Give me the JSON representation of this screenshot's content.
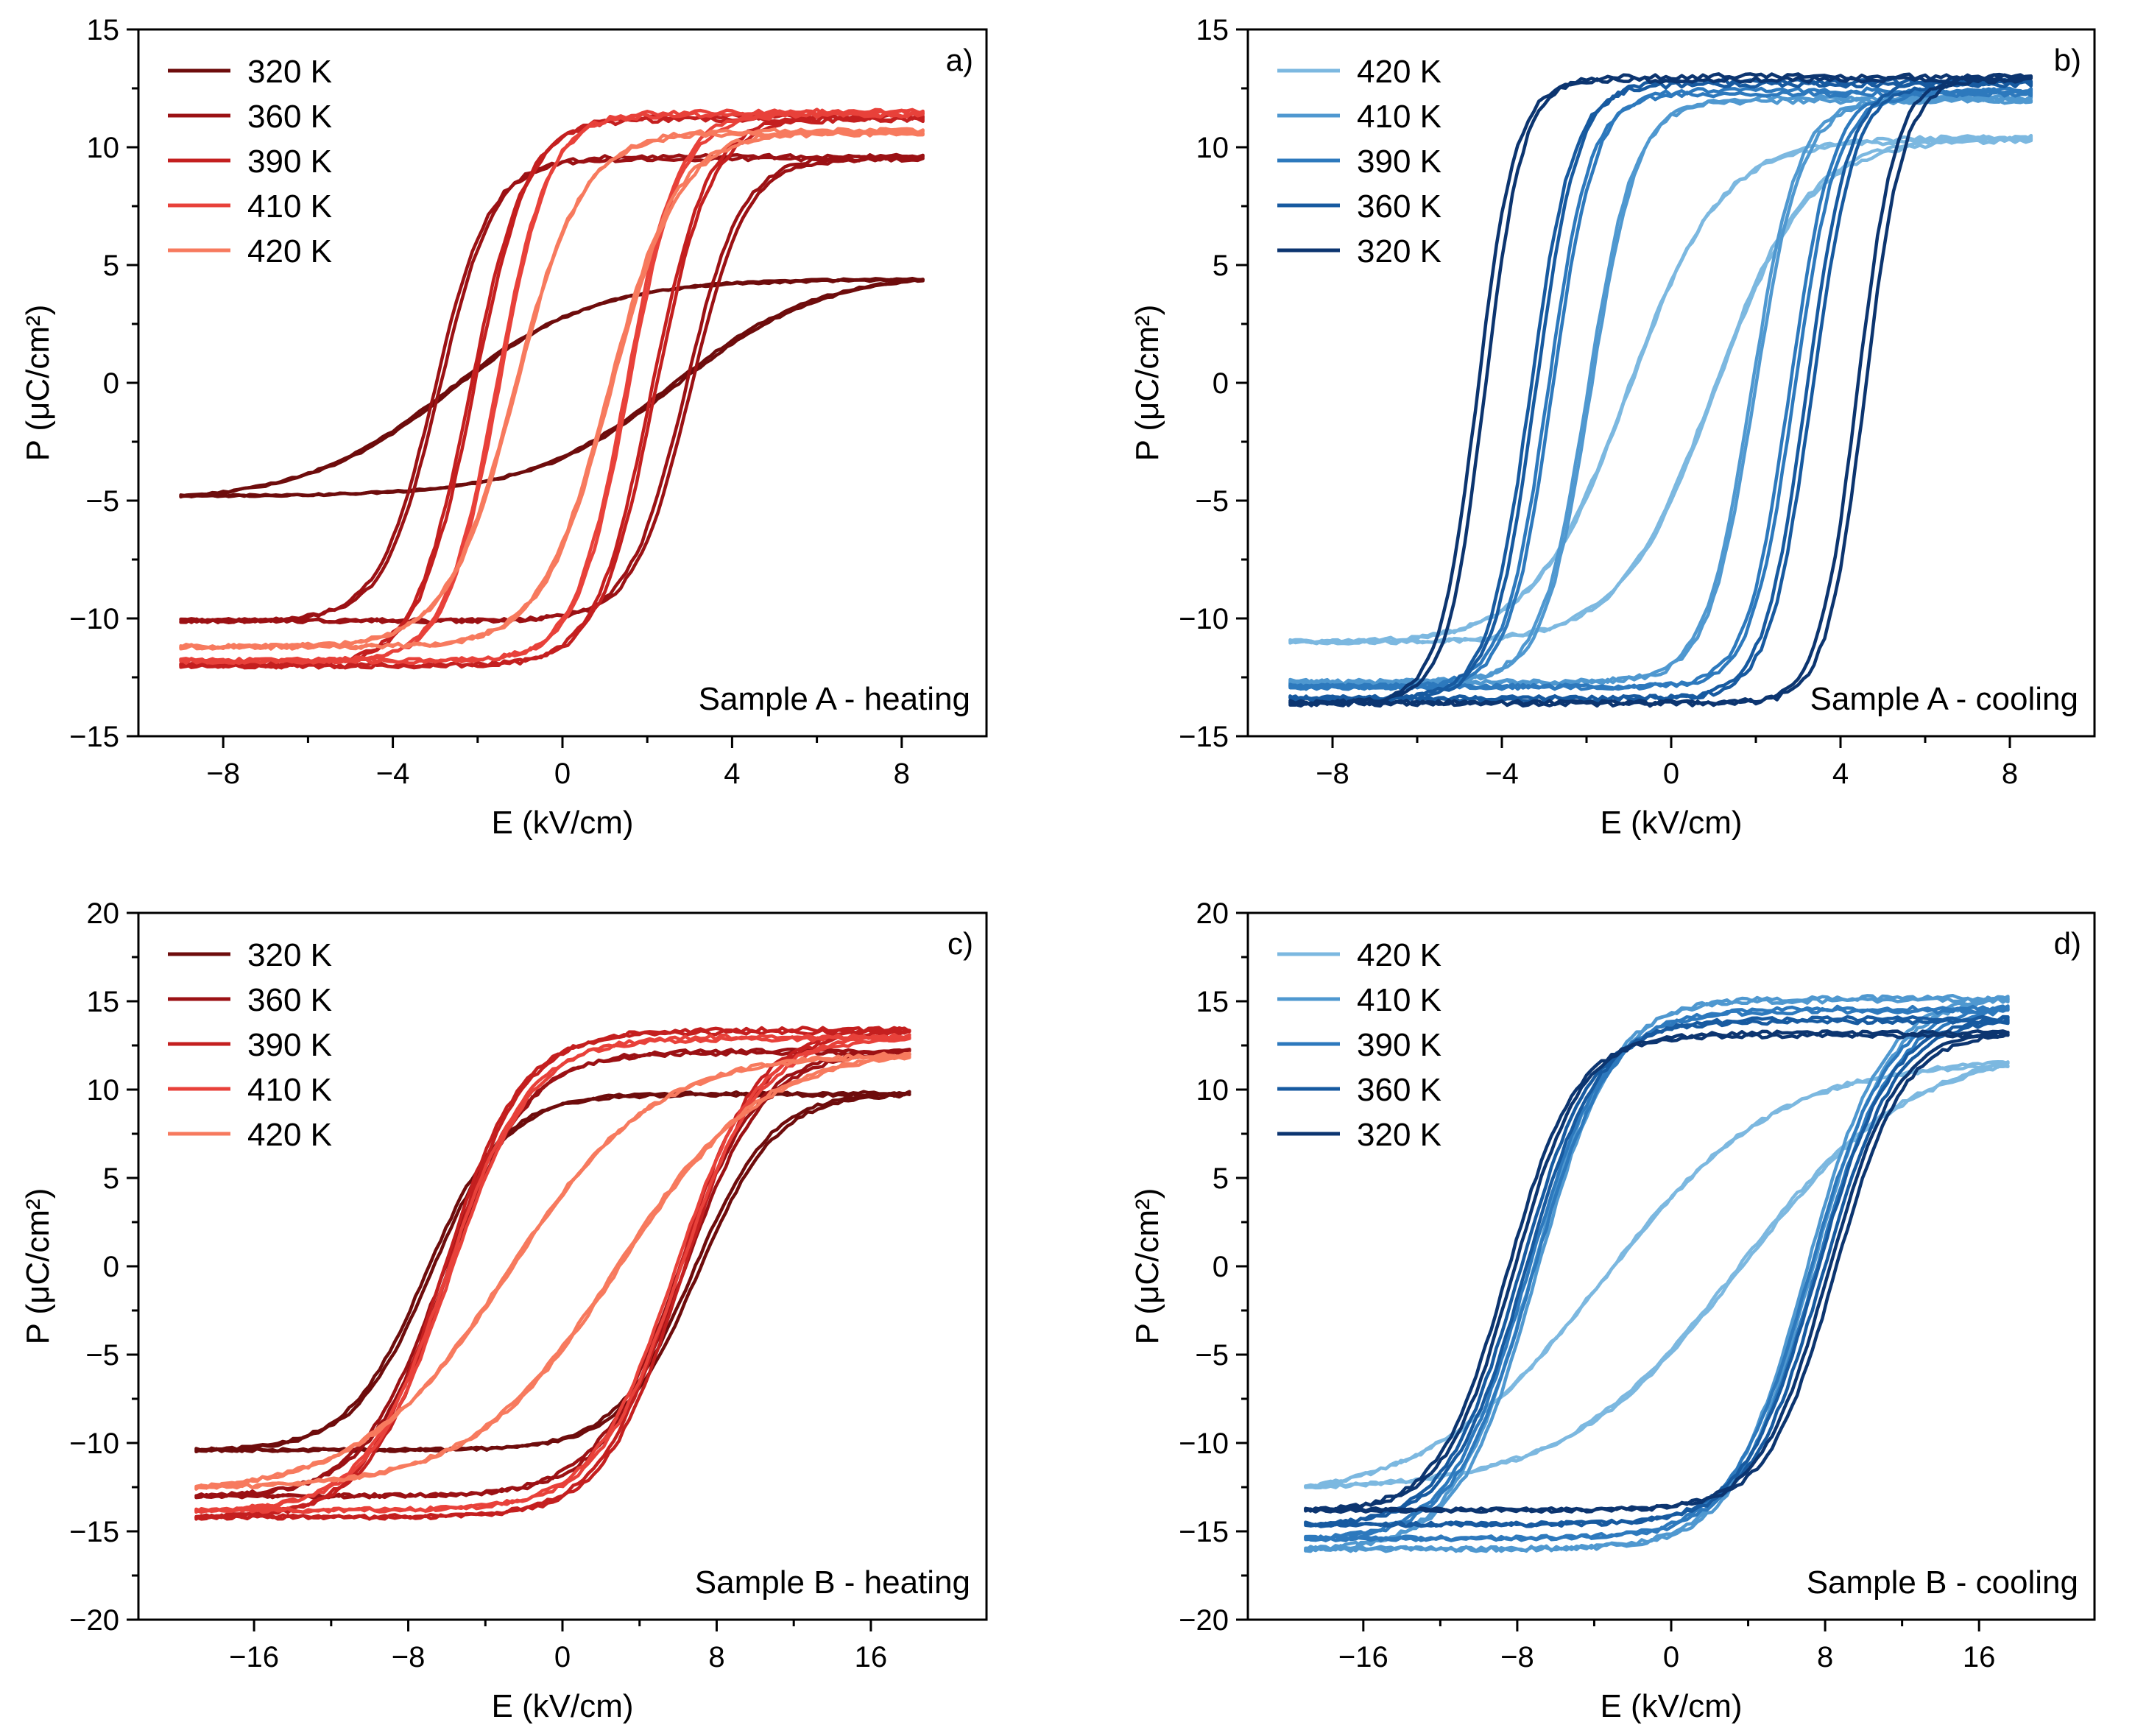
{
  "chart_data": [
    {
      "type": "line",
      "panel_label": "a)",
      "caption": "Sample A - heating",
      "xlabel": "E (kV/cm)",
      "ylabel": "P (μC/cm²)",
      "xlim": [
        -10,
        10
      ],
      "ylim": [
        -15,
        15
      ],
      "xticks": [
        -8,
        -4,
        0,
        4,
        8
      ],
      "yticks": [
        -15,
        -10,
        -5,
        0,
        5,
        10,
        15
      ],
      "legend_position": "top-left",
      "series": [
        {
          "name": "320 K",
          "color": "#6e0c0c",
          "emax": 8.5,
          "emin": -9.0,
          "pmax": 4.4,
          "pmin": -4.8,
          "ec": 2.6,
          "w": 3.4,
          "lin": 0.0
        },
        {
          "name": "360 K",
          "color": "#9b1114",
          "emax": 8.5,
          "emin": -9.0,
          "pmax": 9.6,
          "pmin": -10.1,
          "ec": 2.9,
          "w": 1.3,
          "lin": 0.03
        },
        {
          "name": "390 K",
          "color": "#c41f1f",
          "emax": 8.5,
          "emin": -9.0,
          "pmax": 11.3,
          "pmin": -12.0,
          "ec": 2.1,
          "w": 1.3,
          "lin": 0.03
        },
        {
          "name": "410 K",
          "color": "#e8413a",
          "emax": 8.5,
          "emin": -9.0,
          "pmax": 11.5,
          "pmin": -11.8,
          "ec": 1.5,
          "w": 1.2,
          "lin": 0.03
        },
        {
          "name": "420 K",
          "color": "#f77a5e",
          "emax": 8.5,
          "emin": -9.0,
          "pmax": 10.7,
          "pmin": -11.2,
          "ec": 1.1,
          "w": 1.6,
          "lin": 0.03
        }
      ]
    },
    {
      "type": "line",
      "panel_label": "b)",
      "caption": "Sample A - cooling",
      "xlabel": "E (kV/cm)",
      "ylabel": "P (μC/cm²)",
      "xlim": [
        -10,
        10
      ],
      "ylim": [
        -15,
        15
      ],
      "xticks": [
        -8,
        -4,
        0,
        4,
        8
      ],
      "yticks": [
        -15,
        -10,
        -5,
        0,
        5,
        10,
        15
      ],
      "legend_position": "top-left",
      "series": [
        {
          "name": "420 K",
          "color": "#7cb8e0",
          "emax": 8.5,
          "emin": -9.0,
          "pmax": 10.4,
          "pmin": -11.0,
          "ec": 1.0,
          "w": 2.2,
          "lin": 0.03
        },
        {
          "name": "410 K",
          "color": "#4f98d0",
          "emax": 8.5,
          "emin": -9.0,
          "pmax": 12.1,
          "pmin": -12.7,
          "ec": 1.9,
          "w": 1.1,
          "lin": 0.02
        },
        {
          "name": "390 K",
          "color": "#2d79bd",
          "emax": 8.5,
          "emin": -9.0,
          "pmax": 12.4,
          "pmin": -12.9,
          "ec": 2.8,
          "w": 1.0,
          "lin": 0.02
        },
        {
          "name": "360 K",
          "color": "#175aa0",
          "emax": 8.5,
          "emin": -9.0,
          "pmax": 12.8,
          "pmin": -13.4,
          "ec": 3.2,
          "w": 1.0,
          "lin": 0.02
        },
        {
          "name": "320 K",
          "color": "#0c3570",
          "emax": 8.5,
          "emin": -9.0,
          "pmax": 13.0,
          "pmin": -13.6,
          "ec": 4.4,
          "w": 0.9,
          "lin": 0.02
        }
      ]
    },
    {
      "type": "line",
      "panel_label": "c)",
      "caption": "Sample B - heating",
      "xlabel": "E (kV/cm)",
      "ylabel": "P (μC/cm²)",
      "xlim": [
        -22,
        22
      ],
      "ylim": [
        -20,
        20
      ],
      "xticks": [
        -16,
        -8,
        0,
        8,
        16
      ],
      "yticks": [
        -20,
        -15,
        -10,
        -5,
        0,
        5,
        10,
        15,
        20
      ],
      "legend_position": "top-left",
      "series": [
        {
          "name": "320 K",
          "color": "#6e0c0c",
          "emax": 18.0,
          "emin": -19.0,
          "pmax": 9.8,
          "pmin": -10.4,
          "ec": 6.8,
          "w": 4.0,
          "lin": 0.02
        },
        {
          "name": "360 K",
          "color": "#9b1114",
          "emax": 18.0,
          "emin": -19.0,
          "pmax": 12.2,
          "pmin": -13.0,
          "ec": 6.0,
          "w": 4.2,
          "lin": 0.02
        },
        {
          "name": "390 K",
          "color": "#c41f1f",
          "emax": 18.0,
          "emin": -19.0,
          "pmax": 13.4,
          "pmin": -14.2,
          "ec": 6.0,
          "w": 4.0,
          "lin": 0.02
        },
        {
          "name": "410 K",
          "color": "#e8413a",
          "emax": 18.0,
          "emin": -19.0,
          "pmax": 13.0,
          "pmin": -13.8,
          "ec": 5.8,
          "w": 4.2,
          "lin": 0.02
        },
        {
          "name": "420 K",
          "color": "#f77a5e",
          "emax": 18.0,
          "emin": -19.0,
          "pmax": 12.0,
          "pmin": -12.5,
          "ec": 2.8,
          "w": 7.5,
          "lin": 0.02
        }
      ]
    },
    {
      "type": "line",
      "panel_label": "d)",
      "caption": "Sample B - cooling",
      "xlabel": "E (kV/cm)",
      "ylabel": "P (μC/cm²)",
      "xlim": [
        -22,
        22
      ],
      "ylim": [
        -20,
        20
      ],
      "xticks": [
        -16,
        -8,
        0,
        8,
        16
      ],
      "yticks": [
        -20,
        -15,
        -10,
        -5,
        0,
        5,
        10,
        15,
        20
      ],
      "legend_position": "top-left",
      "series": [
        {
          "name": "420 K",
          "color": "#7cb8e0",
          "emax": 17.5,
          "emin": -19.0,
          "pmax": 11.5,
          "pmin": -12.5,
          "ec": 3.5,
          "w": 9.0,
          "lin": 0.02
        },
        {
          "name": "410 K",
          "color": "#4f98d0",
          "emax": 17.5,
          "emin": -19.0,
          "pmax": 15.2,
          "pmin": -16.0,
          "ec": 7.0,
          "w": 4.0,
          "lin": 0.02
        },
        {
          "name": "390 K",
          "color": "#2d79bd",
          "emax": 17.5,
          "emin": -19.0,
          "pmax": 14.6,
          "pmin": -15.4,
          "ec": 7.2,
          "w": 4.0,
          "lin": 0.02
        },
        {
          "name": "360 K",
          "color": "#175aa0",
          "emax": 17.5,
          "emin": -19.0,
          "pmax": 14.0,
          "pmin": -14.6,
          "ec": 7.6,
          "w": 3.8,
          "lin": 0.02
        },
        {
          "name": "320 K",
          "color": "#0c3570",
          "emax": 17.5,
          "emin": -19.0,
          "pmax": 13.2,
          "pmin": -13.8,
          "ec": 8.2,
          "w": 3.5,
          "lin": 0.02
        }
      ]
    }
  ]
}
